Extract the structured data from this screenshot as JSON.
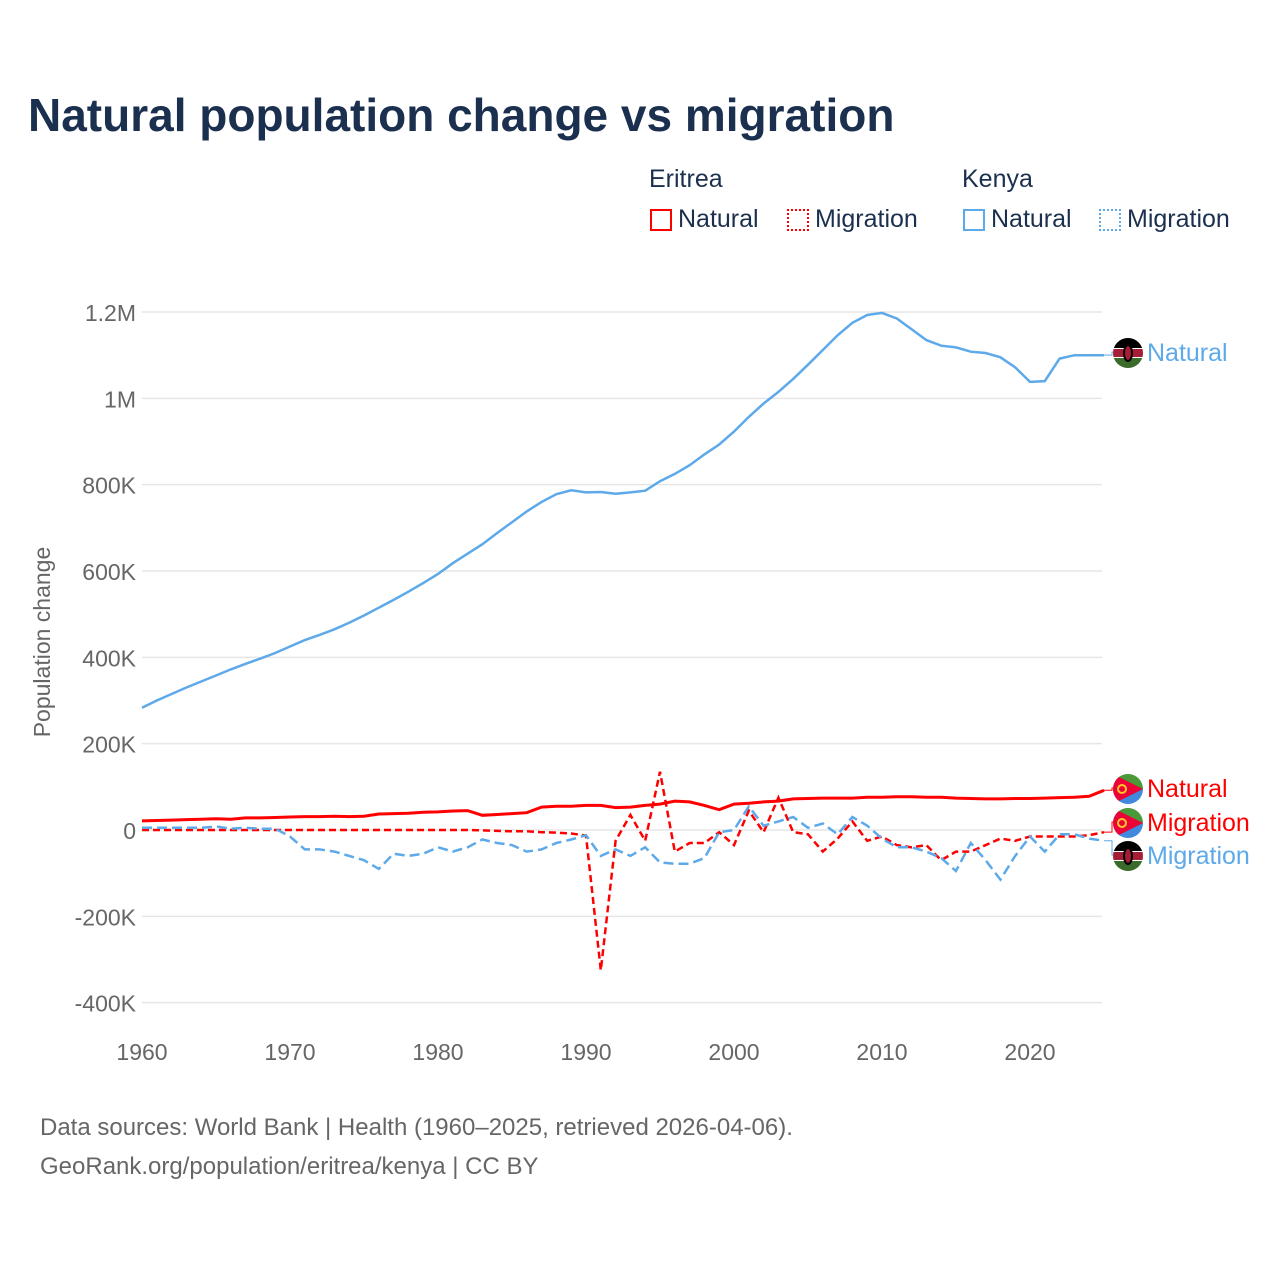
{
  "title": "Natural population change vs migration",
  "legend": {
    "groups": [
      {
        "name": "Eritrea",
        "items": [
          {
            "label": "Natural",
            "style": "solid"
          },
          {
            "label": "Migration",
            "style": "dotted"
          }
        ],
        "color": "#ff0000"
      },
      {
        "name": "Kenya",
        "items": [
          {
            "label": "Natural",
            "style": "solid"
          },
          {
            "label": "Migration",
            "style": "dotted"
          }
        ],
        "color": "#5da9e9"
      }
    ]
  },
  "footer": {
    "line1": "Data sources: World Bank | Health (1960–2025, retrieved 2026-04-06).",
    "line2": "GeoRank.org/population/eritrea/kenya | CC BY"
  },
  "chart_data": {
    "type": "line",
    "title": "Natural population change vs migration",
    "ylabel": "Population change",
    "xlabel": "",
    "xlim": [
      1960,
      2025
    ],
    "ylim": [
      -400000,
      1200000
    ],
    "xticks": [
      1960,
      1970,
      1980,
      1990,
      2000,
      2010,
      2020
    ],
    "xtick_labels": [
      "1960",
      "1970",
      "1980",
      "1990",
      "2000",
      "2010",
      "2020"
    ],
    "yticks": [
      -400000,
      -200000,
      0,
      200000,
      400000,
      600000,
      800000,
      1000000,
      1200000
    ],
    "ytick_labels": [
      "-400K",
      "-200K",
      "0",
      "200K",
      "400K",
      "600K",
      "800K",
      "1M",
      "1.2M"
    ],
    "grid": true,
    "x_start": 1960,
    "series": [
      {
        "name": "Kenya Natural",
        "end_label": "Natural",
        "color": "#5da9e9",
        "dash": "none",
        "flag": "kenya",
        "values": [
          283000,
          300000,
          315000,
          330000,
          344000,
          358000,
          372000,
          385000,
          397000,
          410000,
          425000,
          440000,
          452000,
          465000,
          480000,
          497000,
          515000,
          533000,
          552000,
          572000,
          593000,
          618000,
          640000,
          662000,
          688000,
          713000,
          738000,
          760000,
          778000,
          787000,
          782000,
          783000,
          779000,
          782000,
          786000,
          808000,
          825000,
          845000,
          870000,
          893000,
          923000,
          957000,
          988000,
          1015000,
          1045000,
          1078000,
          1112000,
          1146000,
          1175000,
          1193000,
          1198000,
          1185000,
          1160000,
          1135000,
          1122000,
          1118000,
          1108000,
          1105000,
          1095000,
          1072000,
          1038000,
          1040000,
          1092000,
          1100000,
          1100000,
          1100000
        ]
      },
      {
        "name": "Eritrea Natural",
        "end_label": "Natural",
        "color": "#ff0000",
        "dash": "none",
        "flag": "eritrea",
        "values": [
          21000,
          22000,
          23000,
          24000,
          25000,
          26000,
          25000,
          28000,
          28000,
          29000,
          30000,
          31000,
          31000,
          32000,
          31000,
          32000,
          37000,
          38000,
          39000,
          41000,
          42000,
          44000,
          45000,
          34000,
          36000,
          38000,
          40000,
          53000,
          55000,
          55000,
          57000,
          57000,
          52000,
          53000,
          57000,
          60000,
          67000,
          65000,
          57000,
          47000,
          60000,
          62000,
          65000,
          67000,
          72000,
          73000,
          74000,
          74000,
          74000,
          76000,
          76000,
          77000,
          77000,
          76000,
          76000,
          74000,
          73000,
          72000,
          72000,
          73000,
          73000,
          74000,
          75000,
          76000,
          78000,
          92000
        ]
      },
      {
        "name": "Eritrea Migration",
        "end_label": "Migration",
        "color": "#ff0000",
        "dash": "7,4",
        "flag": "eritrea",
        "values": [
          0,
          0,
          0,
          0,
          0,
          0,
          0,
          0,
          0,
          0,
          0,
          0,
          0,
          0,
          0,
          0,
          0,
          0,
          0,
          0,
          0,
          0,
          0,
          -1000,
          -2000,
          -3000,
          -3000,
          -5000,
          -6000,
          -8000,
          -13000,
          -325000,
          -25000,
          35000,
          -25000,
          135000,
          -50000,
          -30000,
          -30000,
          -5000,
          -35000,
          45000,
          -5000,
          75000,
          -5000,
          -10000,
          -50000,
          -20000,
          20000,
          -25000,
          -15000,
          -35000,
          -40000,
          -35000,
          -70000,
          -50000,
          -50000,
          -35000,
          -20000,
          -25000,
          -15000,
          -15000,
          -15000,
          -15000,
          -12000,
          -5000
        ]
      },
      {
        "name": "Kenya Migration",
        "end_label": "Migration",
        "color": "#5da9e9",
        "dash": "10,5",
        "flag": "kenya",
        "values": [
          5000,
          5000,
          5000,
          5000,
          5000,
          8000,
          3000,
          5000,
          3000,
          3000,
          -15000,
          -45000,
          -45000,
          -50000,
          -60000,
          -70000,
          -90000,
          -55000,
          -60000,
          -55000,
          -40000,
          -50000,
          -40000,
          -22000,
          -30000,
          -35000,
          -50000,
          -45000,
          -30000,
          -22000,
          -12000,
          -60000,
          -45000,
          -60000,
          -40000,
          -75000,
          -78000,
          -78000,
          -65000,
          -5000,
          0,
          55000,
          10000,
          20000,
          30000,
          5000,
          15000,
          -10000,
          30000,
          10000,
          -20000,
          -40000,
          -40000,
          -50000,
          -65000,
          -95000,
          -30000,
          -70000,
          -115000,
          -60000,
          -15000,
          -50000,
          -10000,
          -10000,
          -20000,
          -25000
        ]
      }
    ]
  }
}
